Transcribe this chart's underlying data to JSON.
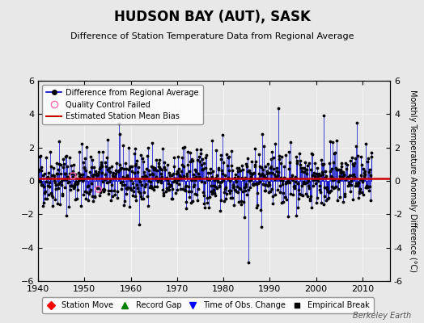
{
  "title": "HUDSON BAY (AUT), SASK",
  "subtitle": "Difference of Station Temperature Data from Regional Average",
  "ylabel": "Monthly Temperature Anomaly Difference (°C)",
  "xlim": [
    1940,
    2016
  ],
  "ylim": [
    -6,
    6
  ],
  "yticks": [
    -6,
    -4,
    -2,
    0,
    2,
    4,
    6
  ],
  "xticks": [
    1940,
    1950,
    1960,
    1970,
    1980,
    1990,
    2000,
    2010
  ],
  "bias_level": 0.15,
  "background_color": "#e8e8e8",
  "plot_bg_color": "#e8e8e8",
  "line_color": "#0000cc",
  "dot_color": "#000000",
  "bias_color": "#cc0000",
  "seed": 42,
  "n_points": 864,
  "start_year": 1940,
  "watermark": "Berkeley Earth"
}
